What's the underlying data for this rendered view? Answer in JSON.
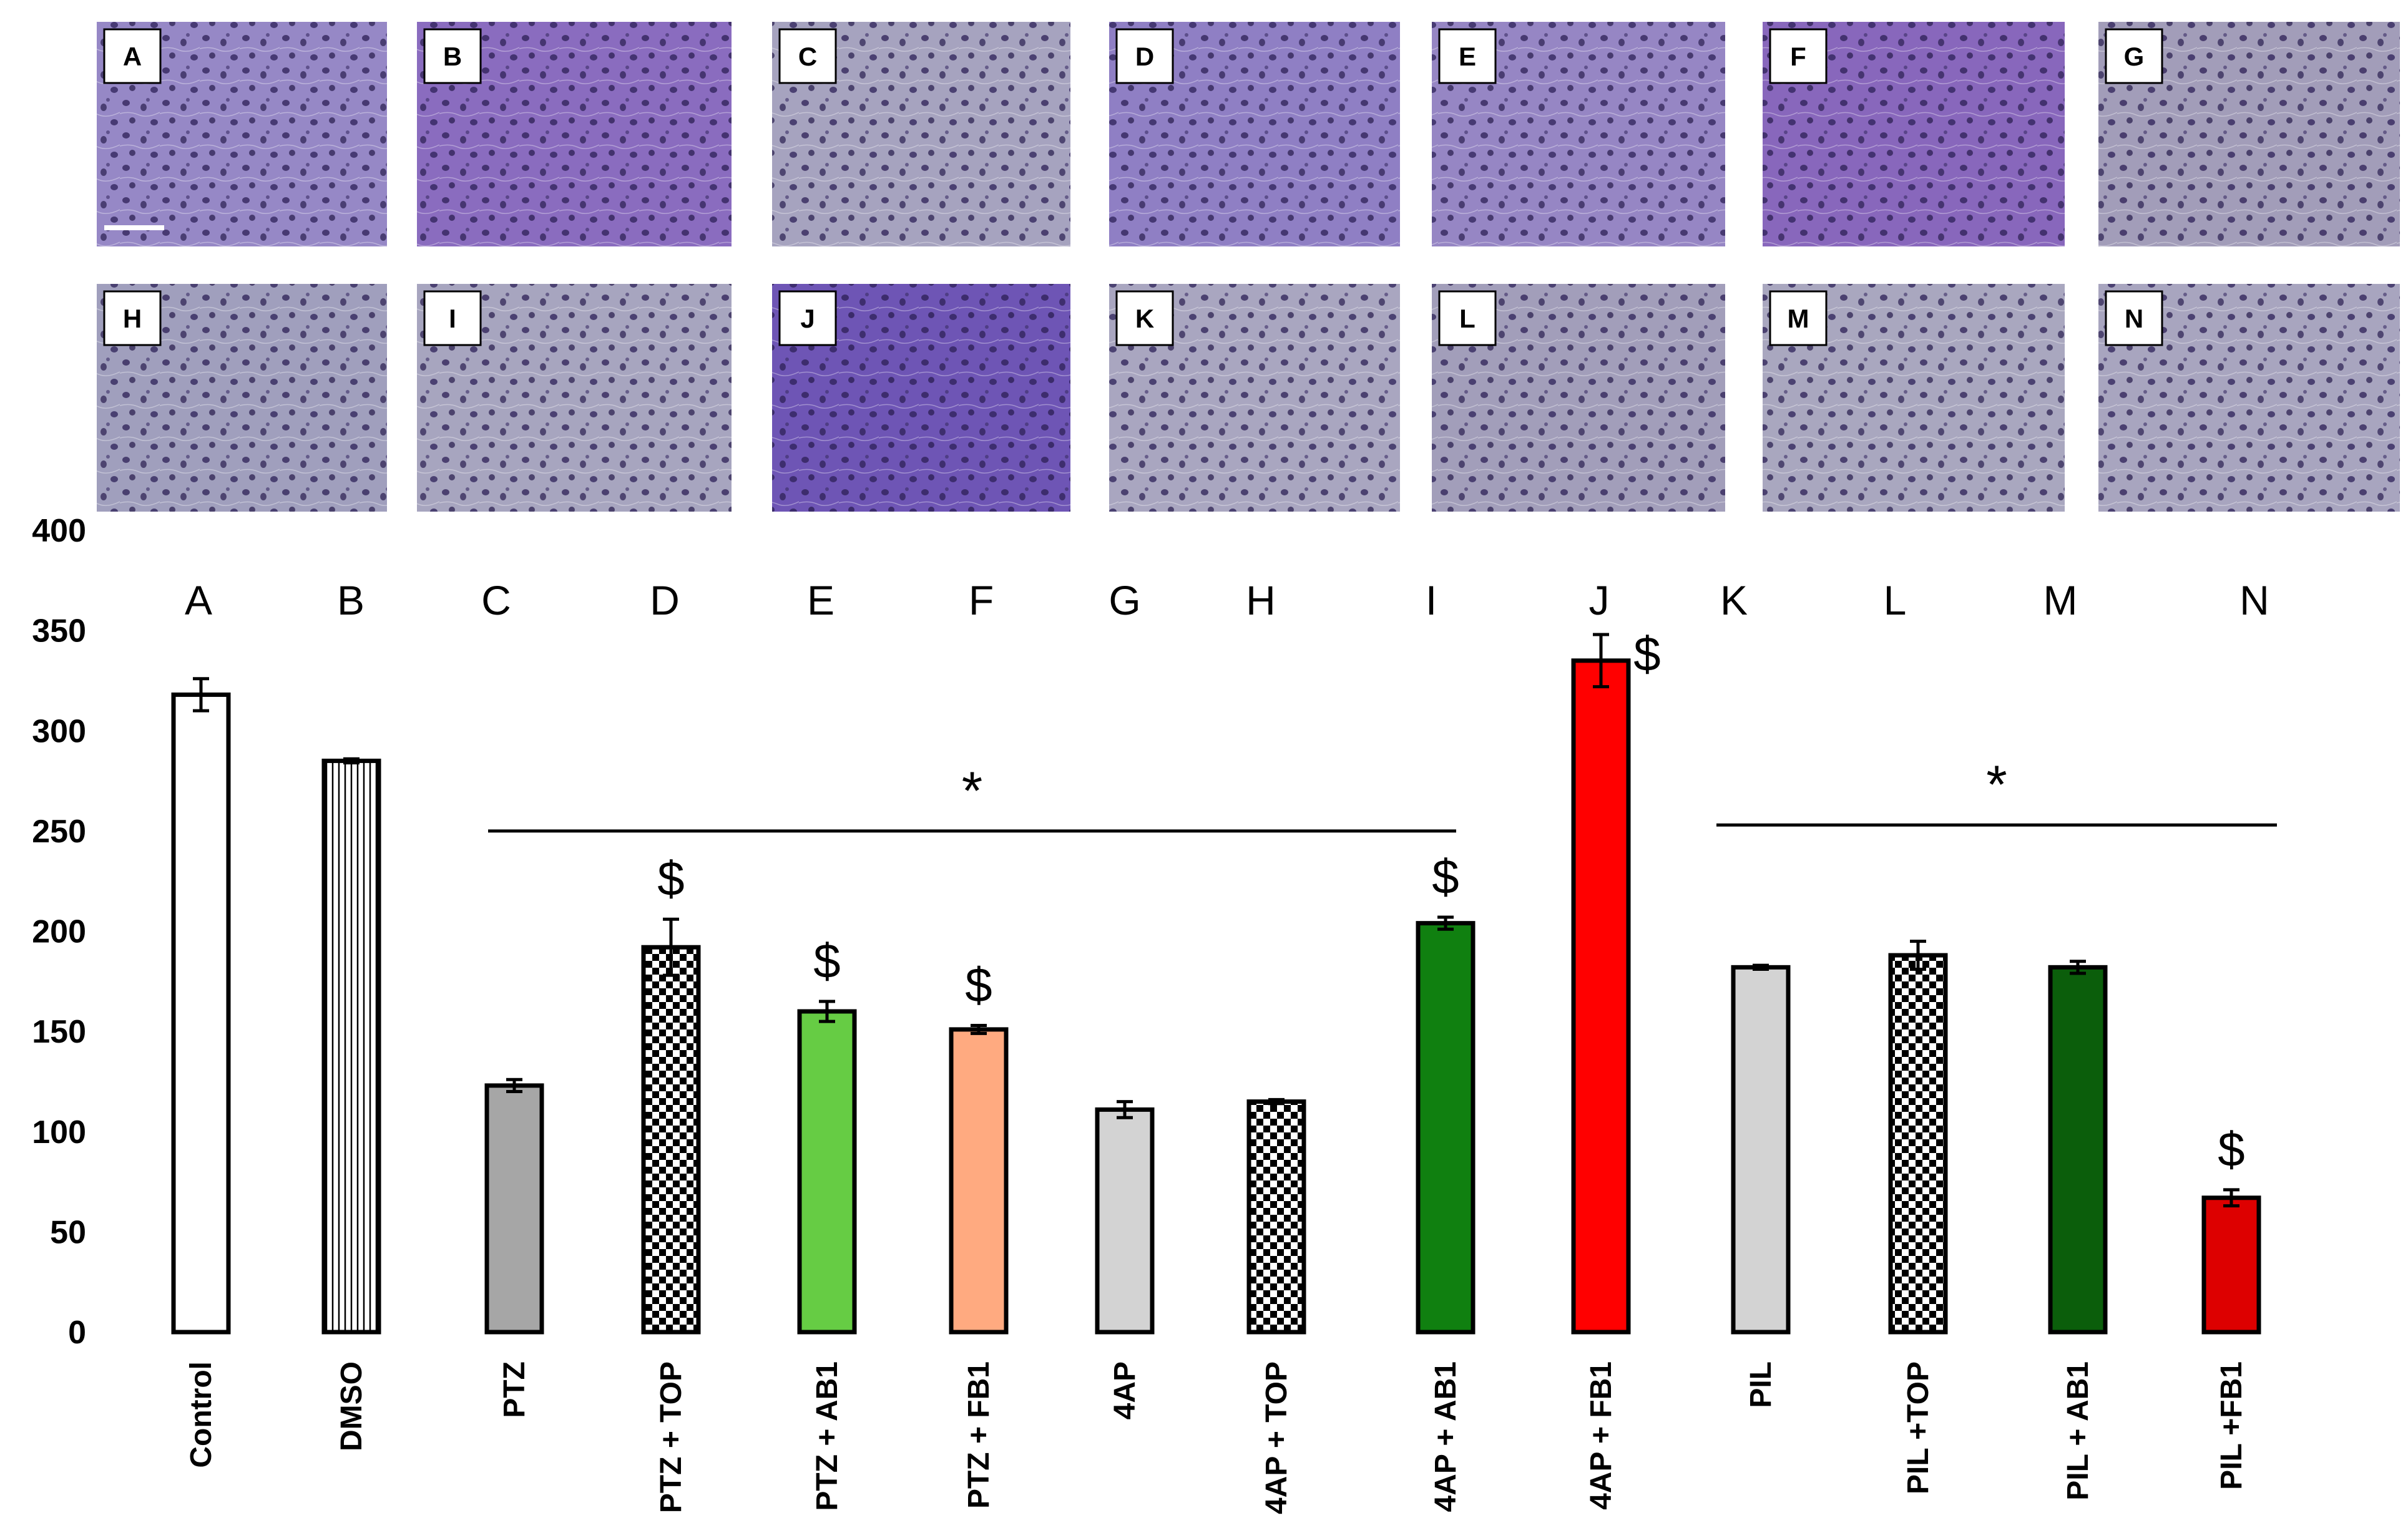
{
  "panels": [
    {
      "letter": "A",
      "tint": "#9688c6"
    },
    {
      "letter": "B",
      "tint": "#8a6cbf"
    },
    {
      "letter": "C",
      "tint": "#a6a3bf"
    },
    {
      "letter": "D",
      "tint": "#8f7fc4"
    },
    {
      "letter": "E",
      "tint": "#9686c4"
    },
    {
      "letter": "F",
      "tint": "#8867bc"
    },
    {
      "letter": "G",
      "tint": "#a29db9"
    },
    {
      "letter": "H",
      "tint": "#a09fbd"
    },
    {
      "letter": "I",
      "tint": "#a7a5bf"
    },
    {
      "letter": "J",
      "tint": "#6e55b5"
    },
    {
      "letter": "K",
      "tint": "#a9a6c0"
    },
    {
      "letter": "L",
      "tint": "#a29eba"
    },
    {
      "letter": "M",
      "tint": "#a9a7bf"
    },
    {
      "letter": "N",
      "tint": "#a8a5bf"
    }
  ],
  "chart_data": {
    "type": "bar",
    "ylim": [
      0,
      400
    ],
    "yticks": [
      0,
      50,
      100,
      150,
      200,
      250,
      300,
      350,
      400
    ],
    "grid": false,
    "categories": [
      "Control",
      "DMSO",
      "PTZ",
      "PTZ + TOP",
      "PTZ + AB1",
      "PTZ + FB1",
      "4AP",
      "4AP + TOP",
      "4AP + AB1",
      "4AP + FB1",
      "PIL",
      "PIL +TOP",
      "PIL + AB1",
      "PIL +FB1"
    ],
    "panel_letters": [
      "A",
      "B",
      "C",
      "D",
      "E",
      "F",
      "G",
      "H",
      "I",
      "J",
      "K",
      "L",
      "M",
      "N"
    ],
    "values": [
      318,
      285,
      123,
      192,
      160,
      151,
      111,
      115,
      204,
      335,
      182,
      188,
      182,
      67
    ],
    "errors": [
      8,
      1,
      3,
      14,
      5,
      2,
      4,
      1,
      3,
      13,
      1,
      7,
      3,
      4
    ],
    "fills": [
      "white",
      "vertical-lines",
      "#a6a6a6",
      "checker",
      "#66cc44",
      "#ffaa80",
      "#d3d3d3",
      "checker",
      "#108010",
      "#ff0000",
      "#d3d3d3",
      "checker",
      "#0b5e0b",
      "#dd0000"
    ],
    "dollar_marks": [
      {
        "category": "PTZ + TOP",
        "text": "$"
      },
      {
        "category": "PTZ + AB1",
        "text": "$"
      },
      {
        "category": "PTZ + FB1",
        "text": "$"
      },
      {
        "category": "4AP + AB1",
        "text": "$"
      },
      {
        "category": "4AP + FB1",
        "text": "$"
      },
      {
        "category": "PIL +FB1",
        "text": "$"
      }
    ],
    "significance": [
      {
        "from": "PTZ",
        "to": "4AP + AB1",
        "label": "*",
        "level": 250
      },
      {
        "from": "PIL",
        "to": "PIL +FB1",
        "label": "*",
        "level": 253
      }
    ]
  }
}
